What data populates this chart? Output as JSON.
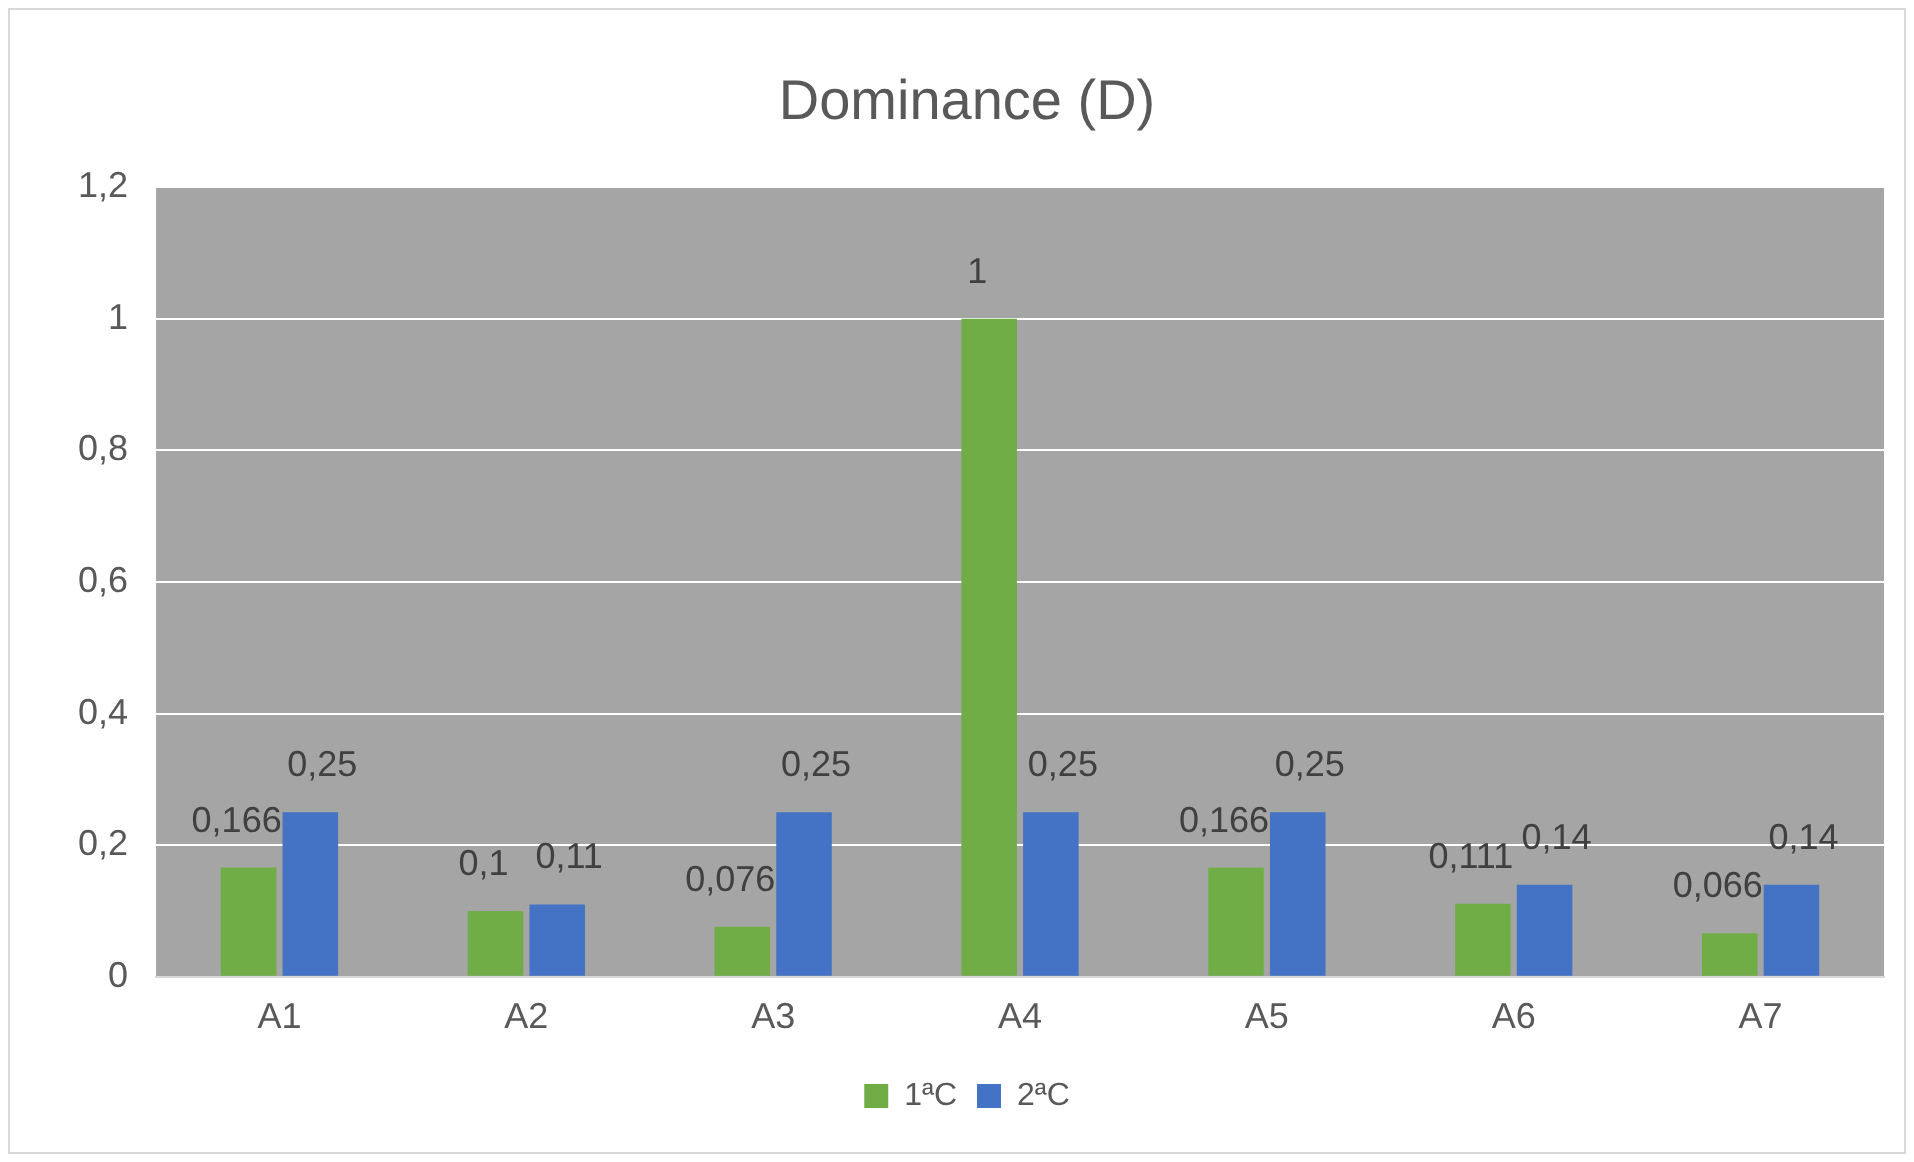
{
  "chart_data": {
    "type": "bar",
    "title": "Dominance (D)",
    "categories": [
      "A1",
      "A2",
      "A3",
      "A4",
      "A5",
      "A6",
      "A7"
    ],
    "series": [
      {
        "name": "1ªC",
        "color": "#70ad47",
        "values": [
          0.166,
          0.1,
          0.076,
          1,
          0.166,
          0.111,
          0.066
        ],
        "value_labels": [
          "0,166",
          "0,1",
          "0,076",
          "1",
          "0,166",
          "0,111",
          "0,066"
        ]
      },
      {
        "name": "2ªC",
        "color": "#4472c4",
        "values": [
          0.25,
          0.11,
          0.25,
          0.25,
          0.25,
          0.14,
          0.14
        ],
        "value_labels": [
          "0,25",
          "0,11",
          "0,25",
          "0,25",
          "0,25",
          "0,14",
          "0,14"
        ]
      }
    ],
    "ylim": [
      0,
      1.2
    ],
    "yticks": [
      {
        "value": 0,
        "label": "0"
      },
      {
        "value": 0.2,
        "label": "0,2"
      },
      {
        "value": 0.4,
        "label": "0,4"
      },
      {
        "value": 0.6,
        "label": "0,6"
      },
      {
        "value": 0.8,
        "label": "0,8"
      },
      {
        "value": 1,
        "label": "1"
      },
      {
        "value": 1.2,
        "label": "1,2"
      }
    ],
    "grid": "y",
    "legend": "bottom"
  }
}
